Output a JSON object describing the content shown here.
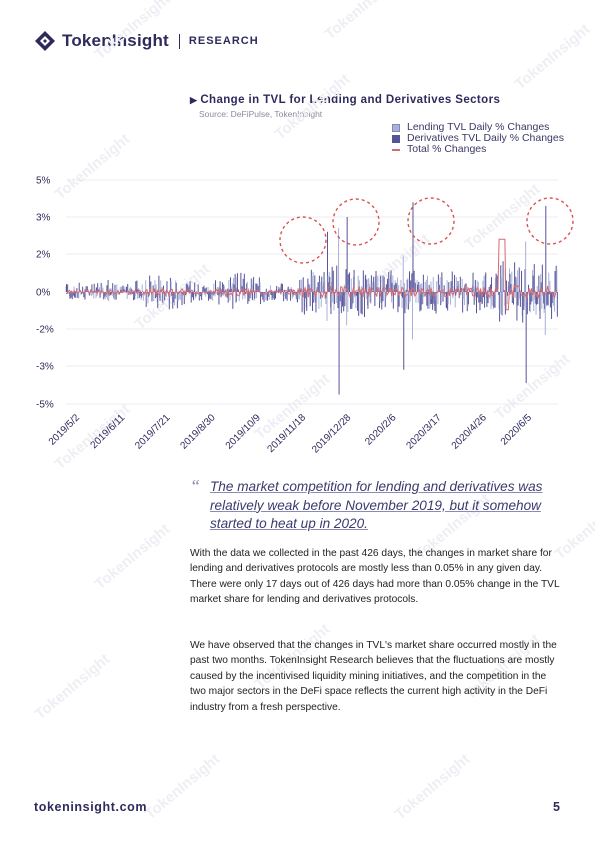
{
  "header": {
    "brand": "TokenInsight",
    "section": "RESEARCH"
  },
  "chart_data": {
    "type": "bar",
    "title": "Change in TVL for Lending and Derivatives Sectors",
    "source": "Source: DeFiPulse, TokenInsight",
    "yticks": [
      "5%",
      "3%",
      "2%",
      "0%",
      "-2%",
      "-3%",
      "-5%"
    ],
    "ylim": [
      -5,
      5
    ],
    "xticks": [
      "2019/5/2",
      "2019/6/11",
      "2019/7/21",
      "2019/8/30",
      "2019/10/9",
      "2019/11/18",
      "2019/12/28",
      "2020/2/6",
      "2020/3/17",
      "2020/4/26",
      "2020/6/5"
    ],
    "legend_position": "top-right",
    "series": [
      {
        "name": "Lending TVL Daily % Changes",
        "color": "#a9b1d6",
        "type": "bar"
      },
      {
        "name": "Derivatives TVL Daily % Changes",
        "color": "#55539a",
        "type": "bar"
      },
      {
        "name": "Total % Changes",
        "color": "#d46a72",
        "type": "line"
      }
    ],
    "highlights": [
      "2019/11/28",
      "2020/1/3",
      "2020/3/14",
      "2020/6/15"
    ],
    "approx_days": 426
  },
  "quote": "The market competition for lending and derivatives was relatively weak before November 2019, but it somehow started to heat up in 2020.",
  "quote_mark": "“",
  "paragraph1": "With the data we collected in the past 426 days, the changes in market share for lending and derivatives protocols are mostly less than 0.05% in any given day. There were only 17 days out of 426 days had more than 0.05% change in the TVL market share for lending and derivatives protocols.",
  "paragraph2": "We have observed that the changes in TVL's market share occurred mostly in the past two months. TokenInsight Research believes that the fluctuations are mostly caused by the incentivised liquidity mining initiatives, and the competition in the two major sectors in the DeFi space reflects the current high activity in the DeFi industry from a fresh perspective.",
  "footer": {
    "url": "tokeninsight.com",
    "page": "5"
  },
  "colors": {
    "brand": "#2e2b5c",
    "lending": "#a9b1d6",
    "derivatives": "#55539a",
    "total": "#d46a72",
    "highlight": "#d9534f"
  }
}
